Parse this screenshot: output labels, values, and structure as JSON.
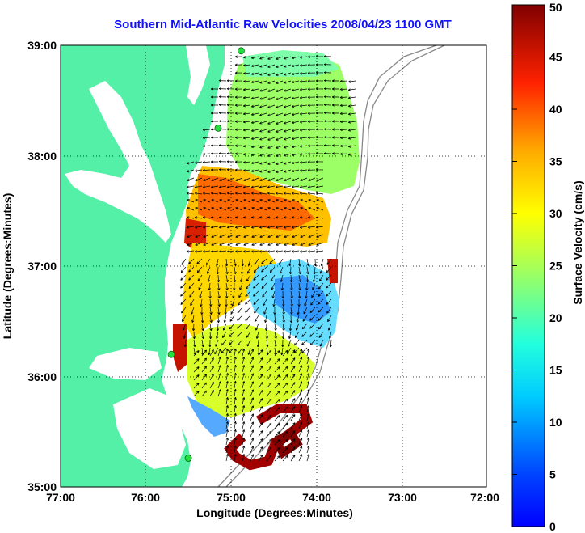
{
  "title": "Southern Mid-Atlantic Raw Velocities 2008/04/23 1100 GMT",
  "x_axis": {
    "label": "Longitude (Degrees:Minutes)",
    "ticks": [
      {
        "value": -77,
        "label": "77:00"
      },
      {
        "value": -76,
        "label": "76:00"
      },
      {
        "value": -75,
        "label": "75:00"
      },
      {
        "value": -74,
        "label": "74:00"
      },
      {
        "value": -73,
        "label": "73:00"
      },
      {
        "value": -72,
        "label": "72:00"
      }
    ],
    "range": [
      -77,
      -72
    ]
  },
  "y_axis": {
    "label": "Latitude (Degrees:Minutes)",
    "ticks": [
      {
        "value": 35,
        "label": "35:00"
      },
      {
        "value": 36,
        "label": "36:00"
      },
      {
        "value": 37,
        "label": "37:00"
      },
      {
        "value": 38,
        "label": "38:00"
      },
      {
        "value": 39,
        "label": "39:00"
      }
    ],
    "range": [
      35,
      39
    ]
  },
  "colorbar": {
    "label": "Surface Velocity (cm/s)",
    "range": [
      0,
      50
    ],
    "ticks": [
      "0",
      "5",
      "10",
      "15",
      "20",
      "25",
      "30",
      "35",
      "40",
      "45",
      "50"
    ],
    "colormap": "jet"
  },
  "colors": {
    "land": "#55f0a8",
    "water": "#ffffff",
    "grid": "#000000",
    "title": "#1010ff",
    "station": "#22e040"
  },
  "stations": [
    {
      "lon": -74.88,
      "lat": 38.95
    },
    {
      "lon": -75.15,
      "lat": 38.25
    },
    {
      "lon": -75.7,
      "lat": 36.2
    },
    {
      "lon": -75.5,
      "lat": 35.26
    }
  ]
}
